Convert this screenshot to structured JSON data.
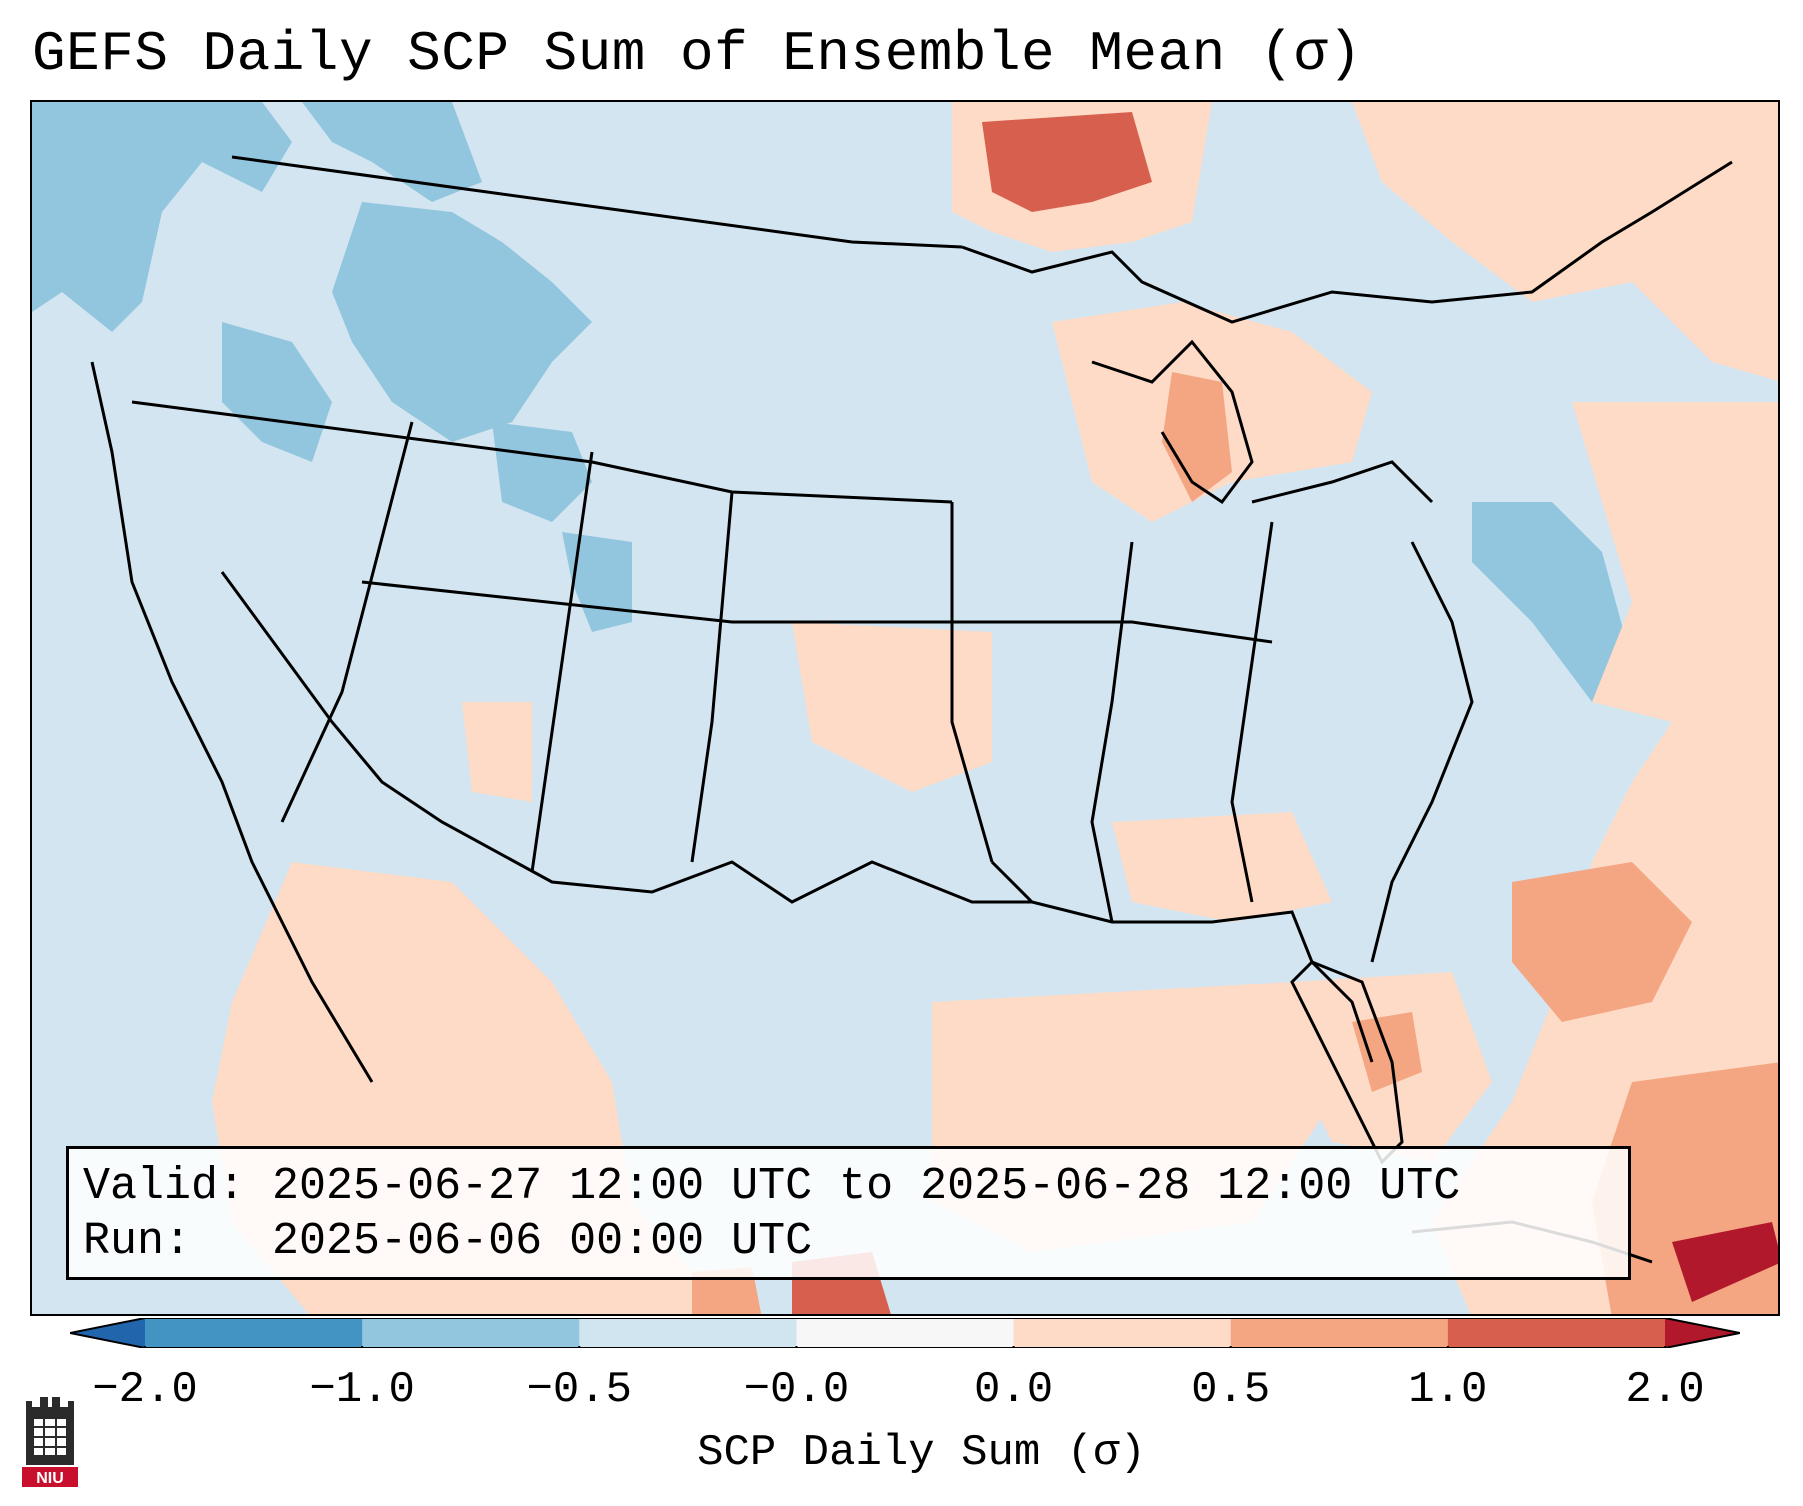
{
  "title": "GEFS Daily SCP Sum of Ensemble Mean (σ)",
  "map": {
    "region": "Continental United States",
    "variable": "SCP Daily Sum (σ)",
    "colors": {
      "ocean_neutral": "#d2e5f1",
      "neg_light": "#d1e5f0",
      "neg_mid": "#92c5de",
      "neg_strong": "#4393c3",
      "neg_extreme": "#2166ac",
      "pos_light": "#fddbc7",
      "pos_mid": "#f4a582",
      "pos_strong": "#d6604d",
      "pos_extreme": "#b2182b",
      "border": "#000000"
    }
  },
  "info": {
    "valid_label": "Valid:",
    "valid_value": "2025-06-27 12:00 UTC to 2025-06-28 12:00 UTC",
    "run_label": "Run:",
    "run_value": "2025-06-06 00:00 UTC"
  },
  "colorbar": {
    "ticks": [
      "−2.0",
      "−1.0",
      "−0.5",
      "−0.0",
      "0.0",
      "0.5",
      "1.0",
      "2.0"
    ],
    "segment_colors": [
      "#2166ac",
      "#4393c3",
      "#92c5de",
      "#d1e5f0",
      "#f7f7f7",
      "#fddbc7",
      "#f4a582",
      "#d6604d",
      "#b2182b"
    ],
    "label": "SCP Daily Sum (σ)"
  },
  "logo": {
    "text": "NIU",
    "icon": "niu-castle-logo-icon"
  }
}
